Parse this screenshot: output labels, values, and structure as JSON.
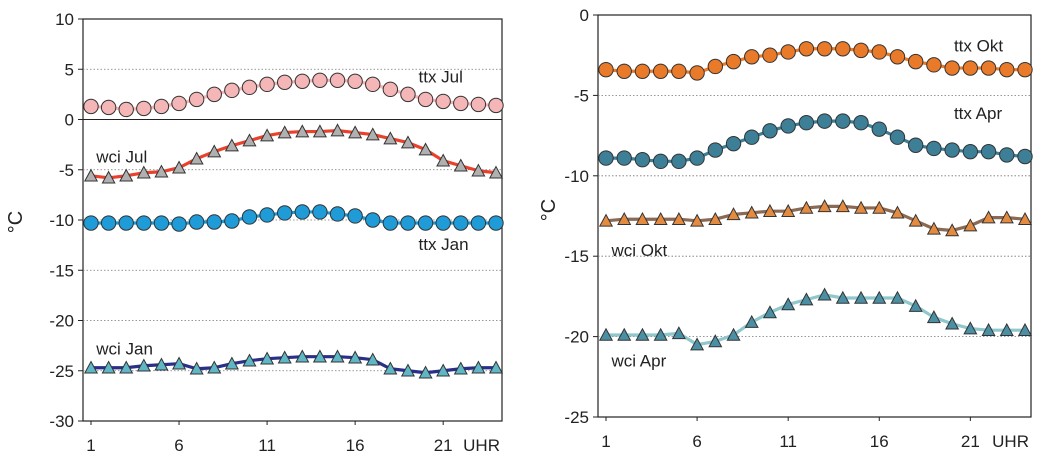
{
  "chart_data": [
    {
      "type": "line",
      "ylabel": "°C",
      "ylim": [
        -30,
        10
      ],
      "yticks": [
        "10",
        "5",
        "0",
        "-5",
        "-10",
        "-15",
        "-20",
        "-25",
        "-30"
      ],
      "xlim": [
        1,
        24
      ],
      "xticks": [
        "1",
        "6",
        "11",
        "16",
        "21"
      ],
      "xunit": "UHR",
      "grid": "horizontal-dotted",
      "zero_line": true,
      "x": [
        1,
        2,
        3,
        4,
        5,
        6,
        7,
        8,
        9,
        10,
        11,
        12,
        13,
        14,
        15,
        16,
        17,
        18,
        19,
        20,
        21,
        22,
        23,
        24
      ],
      "series": [
        {
          "name": "ttx Jul",
          "marker": "circle",
          "fill": "#f4b6b6",
          "line": "#f4b6b6",
          "values": [
            1.3,
            1.2,
            1.0,
            1.1,
            1.3,
            1.6,
            2.0,
            2.5,
            2.9,
            3.2,
            3.5,
            3.7,
            3.8,
            3.9,
            3.9,
            3.8,
            3.5,
            3.0,
            2.5,
            2.0,
            1.8,
            1.6,
            1.5,
            1.4
          ]
        },
        {
          "name": "wci Jul",
          "marker": "triangle",
          "fill": "#b0b0b0",
          "line": "#e8412c",
          "values": [
            -5.6,
            -5.8,
            -5.6,
            -5.3,
            -5.2,
            -4.8,
            -3.9,
            -3.2,
            -2.6,
            -2.1,
            -1.6,
            -1.3,
            -1.2,
            -1.2,
            -1.1,
            -1.3,
            -1.5,
            -1.9,
            -2.3,
            -3.0,
            -4.1,
            -4.6,
            -5.1,
            -5.3
          ]
        },
        {
          "name": "ttx Jan",
          "marker": "circle",
          "fill": "#1f9bd7",
          "line": "#1f9bd7",
          "values": [
            -10.3,
            -10.3,
            -10.3,
            -10.3,
            -10.3,
            -10.4,
            -10.2,
            -10.2,
            -10.1,
            -9.7,
            -9.5,
            -9.3,
            -9.2,
            -9.2,
            -9.4,
            -9.6,
            -10.0,
            -10.3,
            -10.3,
            -10.3,
            -10.3,
            -10.3,
            -10.3,
            -10.3
          ]
        },
        {
          "name": "wci Jan",
          "marker": "triangle",
          "fill": "#5fb6c6",
          "line": "#2a2f8a",
          "values": [
            -24.7,
            -24.7,
            -24.7,
            -24.5,
            -24.4,
            -24.3,
            -24.8,
            -24.7,
            -24.3,
            -24.0,
            -23.8,
            -23.7,
            -23.6,
            -23.6,
            -23.6,
            -23.7,
            -23.9,
            -24.8,
            -25.0,
            -25.2,
            -25.0,
            -24.8,
            -24.7,
            -24.7
          ]
        }
      ],
      "annotations": [
        {
          "text": "ttx Jul",
          "x": 19.6,
          "y": 4.3
        },
        {
          "text": "wci Jul",
          "x": 1.3,
          "y": -3.7
        },
        {
          "text": "ttx Jan",
          "x": 19.6,
          "y": -12.4
        },
        {
          "text": "wci Jan",
          "x": 1.3,
          "y": -22.8
        }
      ]
    },
    {
      "type": "line",
      "ylabel": "°C",
      "ylim": [
        -25,
        0
      ],
      "yticks": [
        "0",
        "-5",
        "-10",
        "-15",
        "-20",
        "-25"
      ],
      "xlim": [
        1,
        24
      ],
      "xticks": [
        "1",
        "6",
        "11",
        "16",
        "21"
      ],
      "xunit": "UHR",
      "grid": "horizontal-dotted",
      "zero_line": false,
      "x": [
        1,
        2,
        3,
        4,
        5,
        6,
        7,
        8,
        9,
        10,
        11,
        12,
        13,
        14,
        15,
        16,
        17,
        18,
        19,
        20,
        21,
        22,
        23,
        24
      ],
      "series": [
        {
          "name": "ttx Okt",
          "marker": "circle",
          "fill": "#e87a2a",
          "line": "#e87a2a",
          "values": [
            -3.4,
            -3.5,
            -3.5,
            -3.5,
            -3.5,
            -3.6,
            -3.2,
            -2.9,
            -2.6,
            -2.5,
            -2.3,
            -2.1,
            -2.1,
            -2.1,
            -2.2,
            -2.3,
            -2.6,
            -2.9,
            -3.1,
            -3.3,
            -3.3,
            -3.3,
            -3.4,
            -3.4
          ]
        },
        {
          "name": "ttx Apr",
          "marker": "circle",
          "fill": "#3d7f96",
          "line": "#3d7f96",
          "values": [
            -8.9,
            -8.9,
            -9.0,
            -9.1,
            -9.1,
            -8.9,
            -8.4,
            -8.0,
            -7.6,
            -7.2,
            -6.9,
            -6.7,
            -6.6,
            -6.6,
            -6.7,
            -7.1,
            -7.6,
            -8.1,
            -8.3,
            -8.4,
            -8.5,
            -8.5,
            -8.7,
            -8.8
          ]
        },
        {
          "name": "wci Okt",
          "marker": "triangle",
          "fill": "#e48b42",
          "line": "#8a6a55",
          "values": [
            -12.8,
            -12.7,
            -12.7,
            -12.7,
            -12.7,
            -12.8,
            -12.7,
            -12.4,
            -12.3,
            -12.2,
            -12.2,
            -12.0,
            -11.9,
            -11.9,
            -12.0,
            -12.0,
            -12.3,
            -12.8,
            -13.3,
            -13.4,
            -13.1,
            -12.6,
            -12.6,
            -12.7
          ]
        },
        {
          "name": "wci Apr",
          "marker": "triangle",
          "fill": "#4a8fa3",
          "line": "#8fc7cc",
          "values": [
            -19.9,
            -19.9,
            -19.9,
            -19.9,
            -19.8,
            -20.5,
            -20.3,
            -19.9,
            -19.1,
            -18.5,
            -18.0,
            -17.7,
            -17.4,
            -17.6,
            -17.6,
            -17.6,
            -17.6,
            -18.1,
            -18.8,
            -19.2,
            -19.5,
            -19.6,
            -19.6,
            -19.6
          ]
        }
      ],
      "annotations": [
        {
          "text": "ttx Okt",
          "x": 20.1,
          "y": -1.9
        },
        {
          "text": "ttx Apr",
          "x": 20.1,
          "y": -6.1
        },
        {
          "text": "wci Okt",
          "x": 1.3,
          "y": -14.6
        },
        {
          "text": "wci Apr",
          "x": 1.3,
          "y": -21.5
        }
      ]
    }
  ]
}
